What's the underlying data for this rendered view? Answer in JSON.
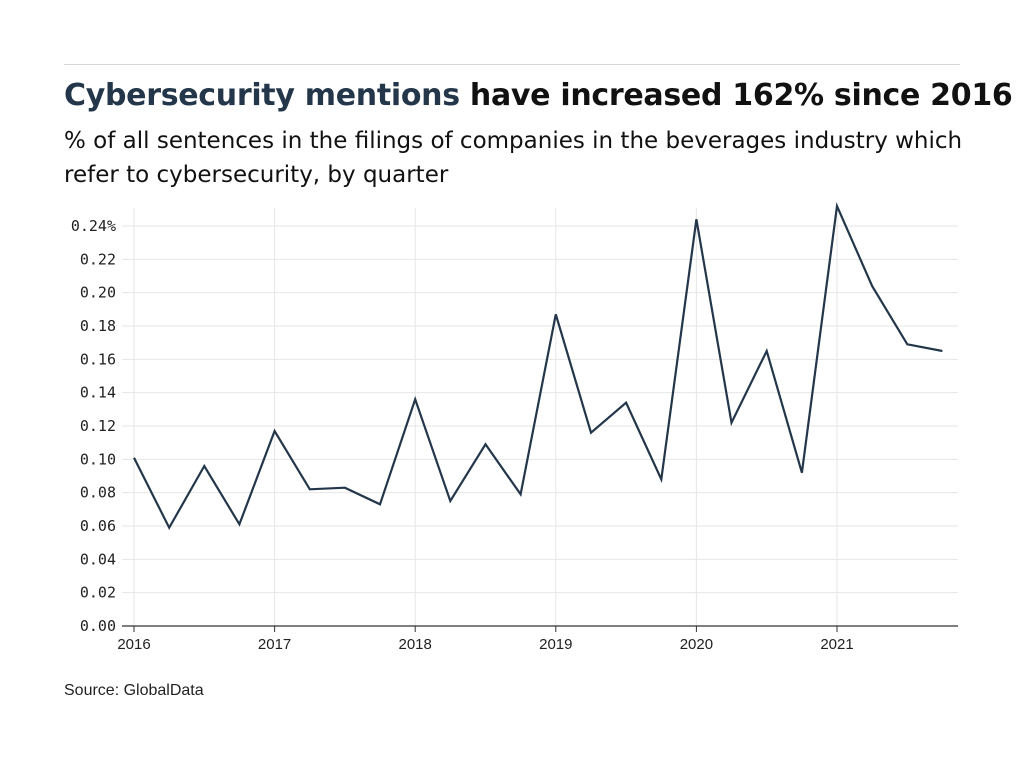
{
  "header": {
    "title_highlight": "Cybersecurity mentions",
    "title_rest": " have increased 162% since 2016",
    "subtitle": "% of all sentences in the filings of companies in the beverages industry which refer to cybersecurity, by quarter"
  },
  "footer": {
    "source": "Source: GlobalData"
  },
  "colors": {
    "line": "#24374a",
    "grid": "#e6e6e6",
    "axis": "#333333",
    "highlight": "#24374a"
  },
  "chart_data": {
    "type": "line",
    "title": "Cybersecurity mentions have increased 162% since 2016",
    "subtitle": "% of all sentences in the filings of companies in the beverages industry which refer to cybersecurity, by quarter",
    "x": [
      "2016 Q1",
      "2016 Q2",
      "2016 Q3",
      "2016 Q4",
      "2017 Q1",
      "2017 Q2",
      "2017 Q3",
      "2017 Q4",
      "2018 Q1",
      "2018 Q2",
      "2018 Q3",
      "2018 Q4",
      "2019 Q1",
      "2019 Q2",
      "2019 Q3",
      "2019 Q4",
      "2020 Q1",
      "2020 Q2",
      "2020 Q3",
      "2020 Q4",
      "2021 Q1",
      "2021 Q2",
      "2021 Q3",
      "2021 Q4"
    ],
    "values": [
      0.101,
      0.059,
      0.096,
      0.061,
      0.117,
      0.082,
      0.083,
      0.073,
      0.136,
      0.075,
      0.109,
      0.079,
      0.187,
      0.116,
      0.134,
      0.088,
      0.244,
      0.122,
      0.165,
      0.092,
      0.252,
      0.204,
      0.169,
      0.165
    ],
    "x_ticks": [
      "2016",
      "2017",
      "2018",
      "2019",
      "2020",
      "2021"
    ],
    "y_ticks": [
      "0.00",
      "0.02",
      "0.04",
      "0.06",
      "0.08",
      "0.10",
      "0.12",
      "0.14",
      "0.16",
      "0.18",
      "0.20",
      "0.22",
      "0.24%"
    ],
    "ylim": [
      0,
      0.24
    ],
    "grid": true,
    "xlabel": "",
    "ylabel": ""
  }
}
